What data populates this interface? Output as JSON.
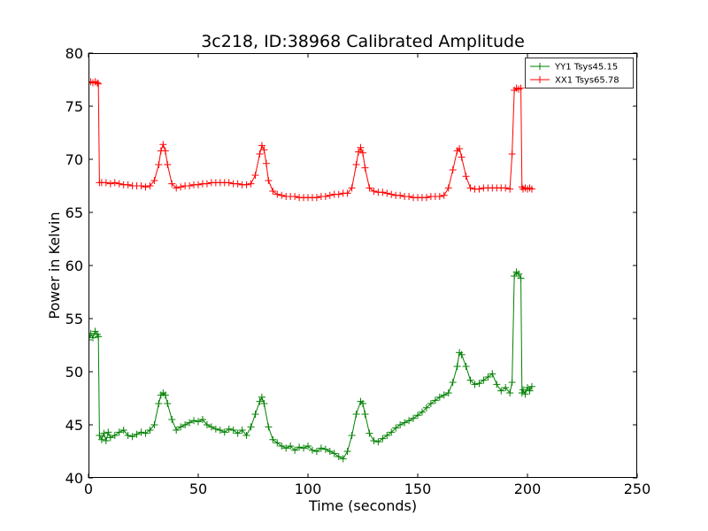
{
  "chart_data": {
    "type": "line",
    "title": "3c218, ID:38968 Calibrated Amplitude",
    "xlabel": "Time (seconds)",
    "ylabel": "Power in Kelvin",
    "xlim": [
      0,
      250
    ],
    "ylim": [
      40,
      80
    ],
    "xticks": [
      0,
      50,
      100,
      150,
      200,
      250
    ],
    "yticks": [
      40,
      45,
      50,
      55,
      60,
      65,
      70,
      75,
      80
    ],
    "grid": false,
    "legend_position": "top-right",
    "marker": "+",
    "series": [
      {
        "name": "YY1 Tsys45.15",
        "color": "#008000",
        "points": [
          [
            0,
            53.0
          ],
          [
            1,
            53.6
          ],
          [
            2,
            53.2
          ],
          [
            3,
            53.8
          ],
          [
            4,
            53.5
          ],
          [
            4.5,
            53.3
          ],
          [
            5,
            44.0
          ],
          [
            6,
            43.6
          ],
          [
            7,
            44.2
          ],
          [
            8,
            43.5
          ],
          [
            9,
            44.3
          ],
          [
            10,
            43.8
          ],
          [
            12,
            44.0
          ],
          [
            14,
            44.3
          ],
          [
            16,
            44.5
          ],
          [
            18,
            44.0
          ],
          [
            20,
            43.9
          ],
          [
            22,
            44.1
          ],
          [
            24,
            44.3
          ],
          [
            26,
            44.2
          ],
          [
            28,
            44.5
          ],
          [
            30,
            45.0
          ],
          [
            32,
            47.0
          ],
          [
            33,
            47.8
          ],
          [
            34,
            48.0
          ],
          [
            35,
            47.8
          ],
          [
            36,
            47.0
          ],
          [
            38,
            45.5
          ],
          [
            40,
            44.5
          ],
          [
            42,
            44.8
          ],
          [
            44,
            45.0
          ],
          [
            46,
            45.2
          ],
          [
            48,
            45.4
          ],
          [
            50,
            45.3
          ],
          [
            52,
            45.5
          ],
          [
            54,
            45.0
          ],
          [
            56,
            44.8
          ],
          [
            58,
            44.6
          ],
          [
            60,
            44.5
          ],
          [
            62,
            44.3
          ],
          [
            64,
            44.6
          ],
          [
            66,
            44.5
          ],
          [
            68,
            44.2
          ],
          [
            70,
            44.5
          ],
          [
            72,
            44.0
          ],
          [
            74,
            44.8
          ],
          [
            76,
            46.0
          ],
          [
            78,
            47.2
          ],
          [
            79,
            47.6
          ],
          [
            80,
            47.0
          ],
          [
            82,
            44.8
          ],
          [
            84,
            43.6
          ],
          [
            86,
            43.3
          ],
          [
            88,
            43.0
          ],
          [
            90,
            42.8
          ],
          [
            92,
            43.0
          ],
          [
            94,
            42.6
          ],
          [
            96,
            42.9
          ],
          [
            98,
            42.8
          ],
          [
            100,
            43.0
          ],
          [
            102,
            42.6
          ],
          [
            104,
            42.5
          ],
          [
            106,
            42.8
          ],
          [
            108,
            42.7
          ],
          [
            110,
            42.5
          ],
          [
            112,
            42.3
          ],
          [
            114,
            42.0
          ],
          [
            116,
            41.8
          ],
          [
            118,
            42.5
          ],
          [
            120,
            44.0
          ],
          [
            122,
            46.0
          ],
          [
            124,
            47.2
          ],
          [
            125,
            47.0
          ],
          [
            126,
            46.0
          ],
          [
            128,
            44.2
          ],
          [
            130,
            43.5
          ],
          [
            132,
            43.4
          ],
          [
            134,
            43.7
          ],
          [
            136,
            44.0
          ],
          [
            138,
            44.3
          ],
          [
            140,
            44.7
          ],
          [
            142,
            45.0
          ],
          [
            144,
            45.2
          ],
          [
            146,
            45.4
          ],
          [
            148,
            45.6
          ],
          [
            150,
            45.9
          ],
          [
            152,
            46.2
          ],
          [
            154,
            46.6
          ],
          [
            156,
            47.0
          ],
          [
            158,
            47.3
          ],
          [
            160,
            47.6
          ],
          [
            162,
            47.8
          ],
          [
            164,
            48.0
          ],
          [
            166,
            49.0
          ],
          [
            168,
            50.5
          ],
          [
            169,
            51.8
          ],
          [
            170,
            51.6
          ],
          [
            172,
            50.5
          ],
          [
            174,
            49.2
          ],
          [
            176,
            48.8
          ],
          [
            178,
            48.9
          ],
          [
            180,
            49.2
          ],
          [
            182,
            49.5
          ],
          [
            184,
            49.8
          ],
          [
            186,
            48.8
          ],
          [
            188,
            48.2
          ],
          [
            190,
            48.5
          ],
          [
            192,
            48.0
          ],
          [
            193,
            49.0
          ],
          [
            194,
            59.0
          ],
          [
            195,
            59.4
          ],
          [
            196,
            59.2
          ],
          [
            197,
            58.8
          ],
          [
            197.5,
            48.0
          ],
          [
            198,
            48.3
          ],
          [
            199,
            47.9
          ],
          [
            200,
            48.5
          ],
          [
            201,
            48.2
          ],
          [
            202,
            48.6
          ]
        ]
      },
      {
        "name": "XX1 Tsys65.78",
        "color": "#ff0000",
        "points": [
          [
            0,
            77.2
          ],
          [
            1,
            77.3
          ],
          [
            2,
            77.2
          ],
          [
            3,
            77.3
          ],
          [
            4,
            77.2
          ],
          [
            4.5,
            77.1
          ],
          [
            5,
            67.8
          ],
          [
            6,
            67.8
          ],
          [
            8,
            67.8
          ],
          [
            10,
            67.7
          ],
          [
            12,
            67.8
          ],
          [
            14,
            67.7
          ],
          [
            16,
            67.6
          ],
          [
            18,
            67.6
          ],
          [
            20,
            67.5
          ],
          [
            22,
            67.5
          ],
          [
            24,
            67.5
          ],
          [
            26,
            67.4
          ],
          [
            28,
            67.5
          ],
          [
            30,
            68.0
          ],
          [
            32,
            69.5
          ],
          [
            33,
            70.8
          ],
          [
            34,
            71.4
          ],
          [
            35,
            70.8
          ],
          [
            36,
            69.5
          ],
          [
            38,
            67.7
          ],
          [
            40,
            67.3
          ],
          [
            42,
            67.4
          ],
          [
            44,
            67.5
          ],
          [
            46,
            67.5
          ],
          [
            48,
            67.6
          ],
          [
            50,
            67.6
          ],
          [
            52,
            67.7
          ],
          [
            54,
            67.7
          ],
          [
            56,
            67.8
          ],
          [
            58,
            67.8
          ],
          [
            60,
            67.8
          ],
          [
            62,
            67.8
          ],
          [
            64,
            67.8
          ],
          [
            66,
            67.7
          ],
          [
            68,
            67.7
          ],
          [
            70,
            67.6
          ],
          [
            72,
            67.6
          ],
          [
            74,
            67.7
          ],
          [
            76,
            68.5
          ],
          [
            78,
            70.5
          ],
          [
            79,
            71.3
          ],
          [
            80,
            70.9
          ],
          [
            81,
            69.6
          ],
          [
            82,
            68.0
          ],
          [
            84,
            67.0
          ],
          [
            86,
            66.7
          ],
          [
            88,
            66.6
          ],
          [
            90,
            66.5
          ],
          [
            92,
            66.5
          ],
          [
            94,
            66.5
          ],
          [
            96,
            66.4
          ],
          [
            98,
            66.4
          ],
          [
            100,
            66.4
          ],
          [
            102,
            66.4
          ],
          [
            104,
            66.4
          ],
          [
            106,
            66.5
          ],
          [
            108,
            66.5
          ],
          [
            110,
            66.6
          ],
          [
            112,
            66.7
          ],
          [
            114,
            66.7
          ],
          [
            116,
            66.8
          ],
          [
            118,
            66.8
          ],
          [
            120,
            67.3
          ],
          [
            122,
            69.5
          ],
          [
            123,
            70.7
          ],
          [
            124,
            71.1
          ],
          [
            125,
            70.6
          ],
          [
            126,
            69.2
          ],
          [
            128,
            67.3
          ],
          [
            130,
            67.0
          ],
          [
            132,
            66.9
          ],
          [
            134,
            66.9
          ],
          [
            136,
            66.8
          ],
          [
            138,
            66.7
          ],
          [
            140,
            66.6
          ],
          [
            142,
            66.6
          ],
          [
            144,
            66.5
          ],
          [
            146,
            66.5
          ],
          [
            148,
            66.4
          ],
          [
            150,
            66.4
          ],
          [
            152,
            66.4
          ],
          [
            154,
            66.4
          ],
          [
            156,
            66.5
          ],
          [
            158,
            66.5
          ],
          [
            160,
            66.5
          ],
          [
            162,
            66.6
          ],
          [
            164,
            67.3
          ],
          [
            166,
            69.0
          ],
          [
            168,
            70.8
          ],
          [
            169,
            71.0
          ],
          [
            170,
            70.2
          ],
          [
            172,
            68.4
          ],
          [
            174,
            67.3
          ],
          [
            176,
            67.2
          ],
          [
            178,
            67.2
          ],
          [
            180,
            67.3
          ],
          [
            182,
            67.3
          ],
          [
            184,
            67.3
          ],
          [
            186,
            67.3
          ],
          [
            188,
            67.3
          ],
          [
            190,
            67.3
          ],
          [
            192,
            67.2
          ],
          [
            193,
            70.5
          ],
          [
            194,
            76.5
          ],
          [
            195,
            76.7
          ],
          [
            196,
            76.6
          ],
          [
            197,
            76.7
          ],
          [
            197.5,
            67.4
          ],
          [
            198,
            67.2
          ],
          [
            199,
            67.3
          ],
          [
            200,
            67.2
          ],
          [
            201,
            67.3
          ],
          [
            202,
            67.2
          ]
        ]
      }
    ]
  }
}
